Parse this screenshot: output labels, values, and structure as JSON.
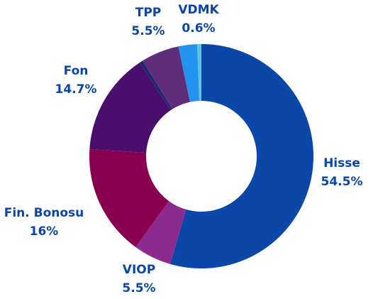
{
  "chart_data": {
    "type": "donut",
    "categories": [
      "Hisse",
      "VIOP",
      "Fin. Bonosu",
      "Fon",
      null,
      "TPP",
      null,
      "VDMK"
    ],
    "values": [
      54.5,
      5.5,
      16,
      14.7,
      0.5,
      5.5,
      2.7,
      0.6
    ],
    "value_labels": [
      "54.5%",
      "5.5%",
      "16%",
      "14.7%",
      null,
      "5.5%",
      null,
      "0.6%"
    ],
    "colors": [
      "#0a47a8",
      "#8c2a8f",
      "#890051",
      "#4a0f6c",
      "#1b2a6e",
      "#5f2d79",
      "#2293ee",
      "#5cc7d6"
    ]
  }
}
